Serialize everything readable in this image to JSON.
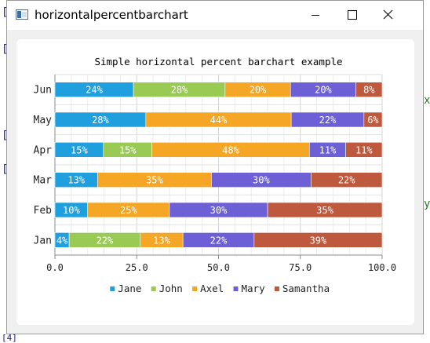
{
  "window": {
    "title": "horizontalpercentbarchart",
    "icon": "qt-window-icon",
    "controls": [
      "minimize-icon",
      "maximize-icon",
      "close-icon"
    ]
  },
  "background_glyphs": [
    "[",
    "[",
    "[",
    "[",
    "x",
    "y",
    "[4]"
  ],
  "chart_data": {
    "type": "bar",
    "orientation": "horizontal",
    "stacked": "percent",
    "title": "Simple horizontal percent barchart example",
    "categories": [
      "Jan",
      "Feb",
      "Mar",
      "Apr",
      "May",
      "Jun"
    ],
    "series": [
      {
        "name": "Jane",
        "color": "#209fdf",
        "values": [
          1,
          2,
          3,
          4,
          5,
          6
        ]
      },
      {
        "name": "John",
        "color": "#99ca53",
        "values": [
          5,
          0,
          0,
          4,
          0,
          7
        ]
      },
      {
        "name": "Axel",
        "color": "#f6a625",
        "values": [
          3,
          5,
          8,
          13,
          8,
          5
        ]
      },
      {
        "name": "Mary",
        "color": "#6d5fd5",
        "values": [
          5,
          6,
          7,
          3,
          4,
          5
        ]
      },
      {
        "name": "Samantha",
        "color": "#bf593e",
        "values": [
          9,
          7,
          5,
          3,
          1,
          2
        ]
      }
    ],
    "xlim": [
      0,
      100
    ],
    "xticks": [
      "0.0",
      "25.0",
      "50.0",
      "75.0",
      "100.0"
    ],
    "grid": true,
    "legend": "bottom"
  }
}
